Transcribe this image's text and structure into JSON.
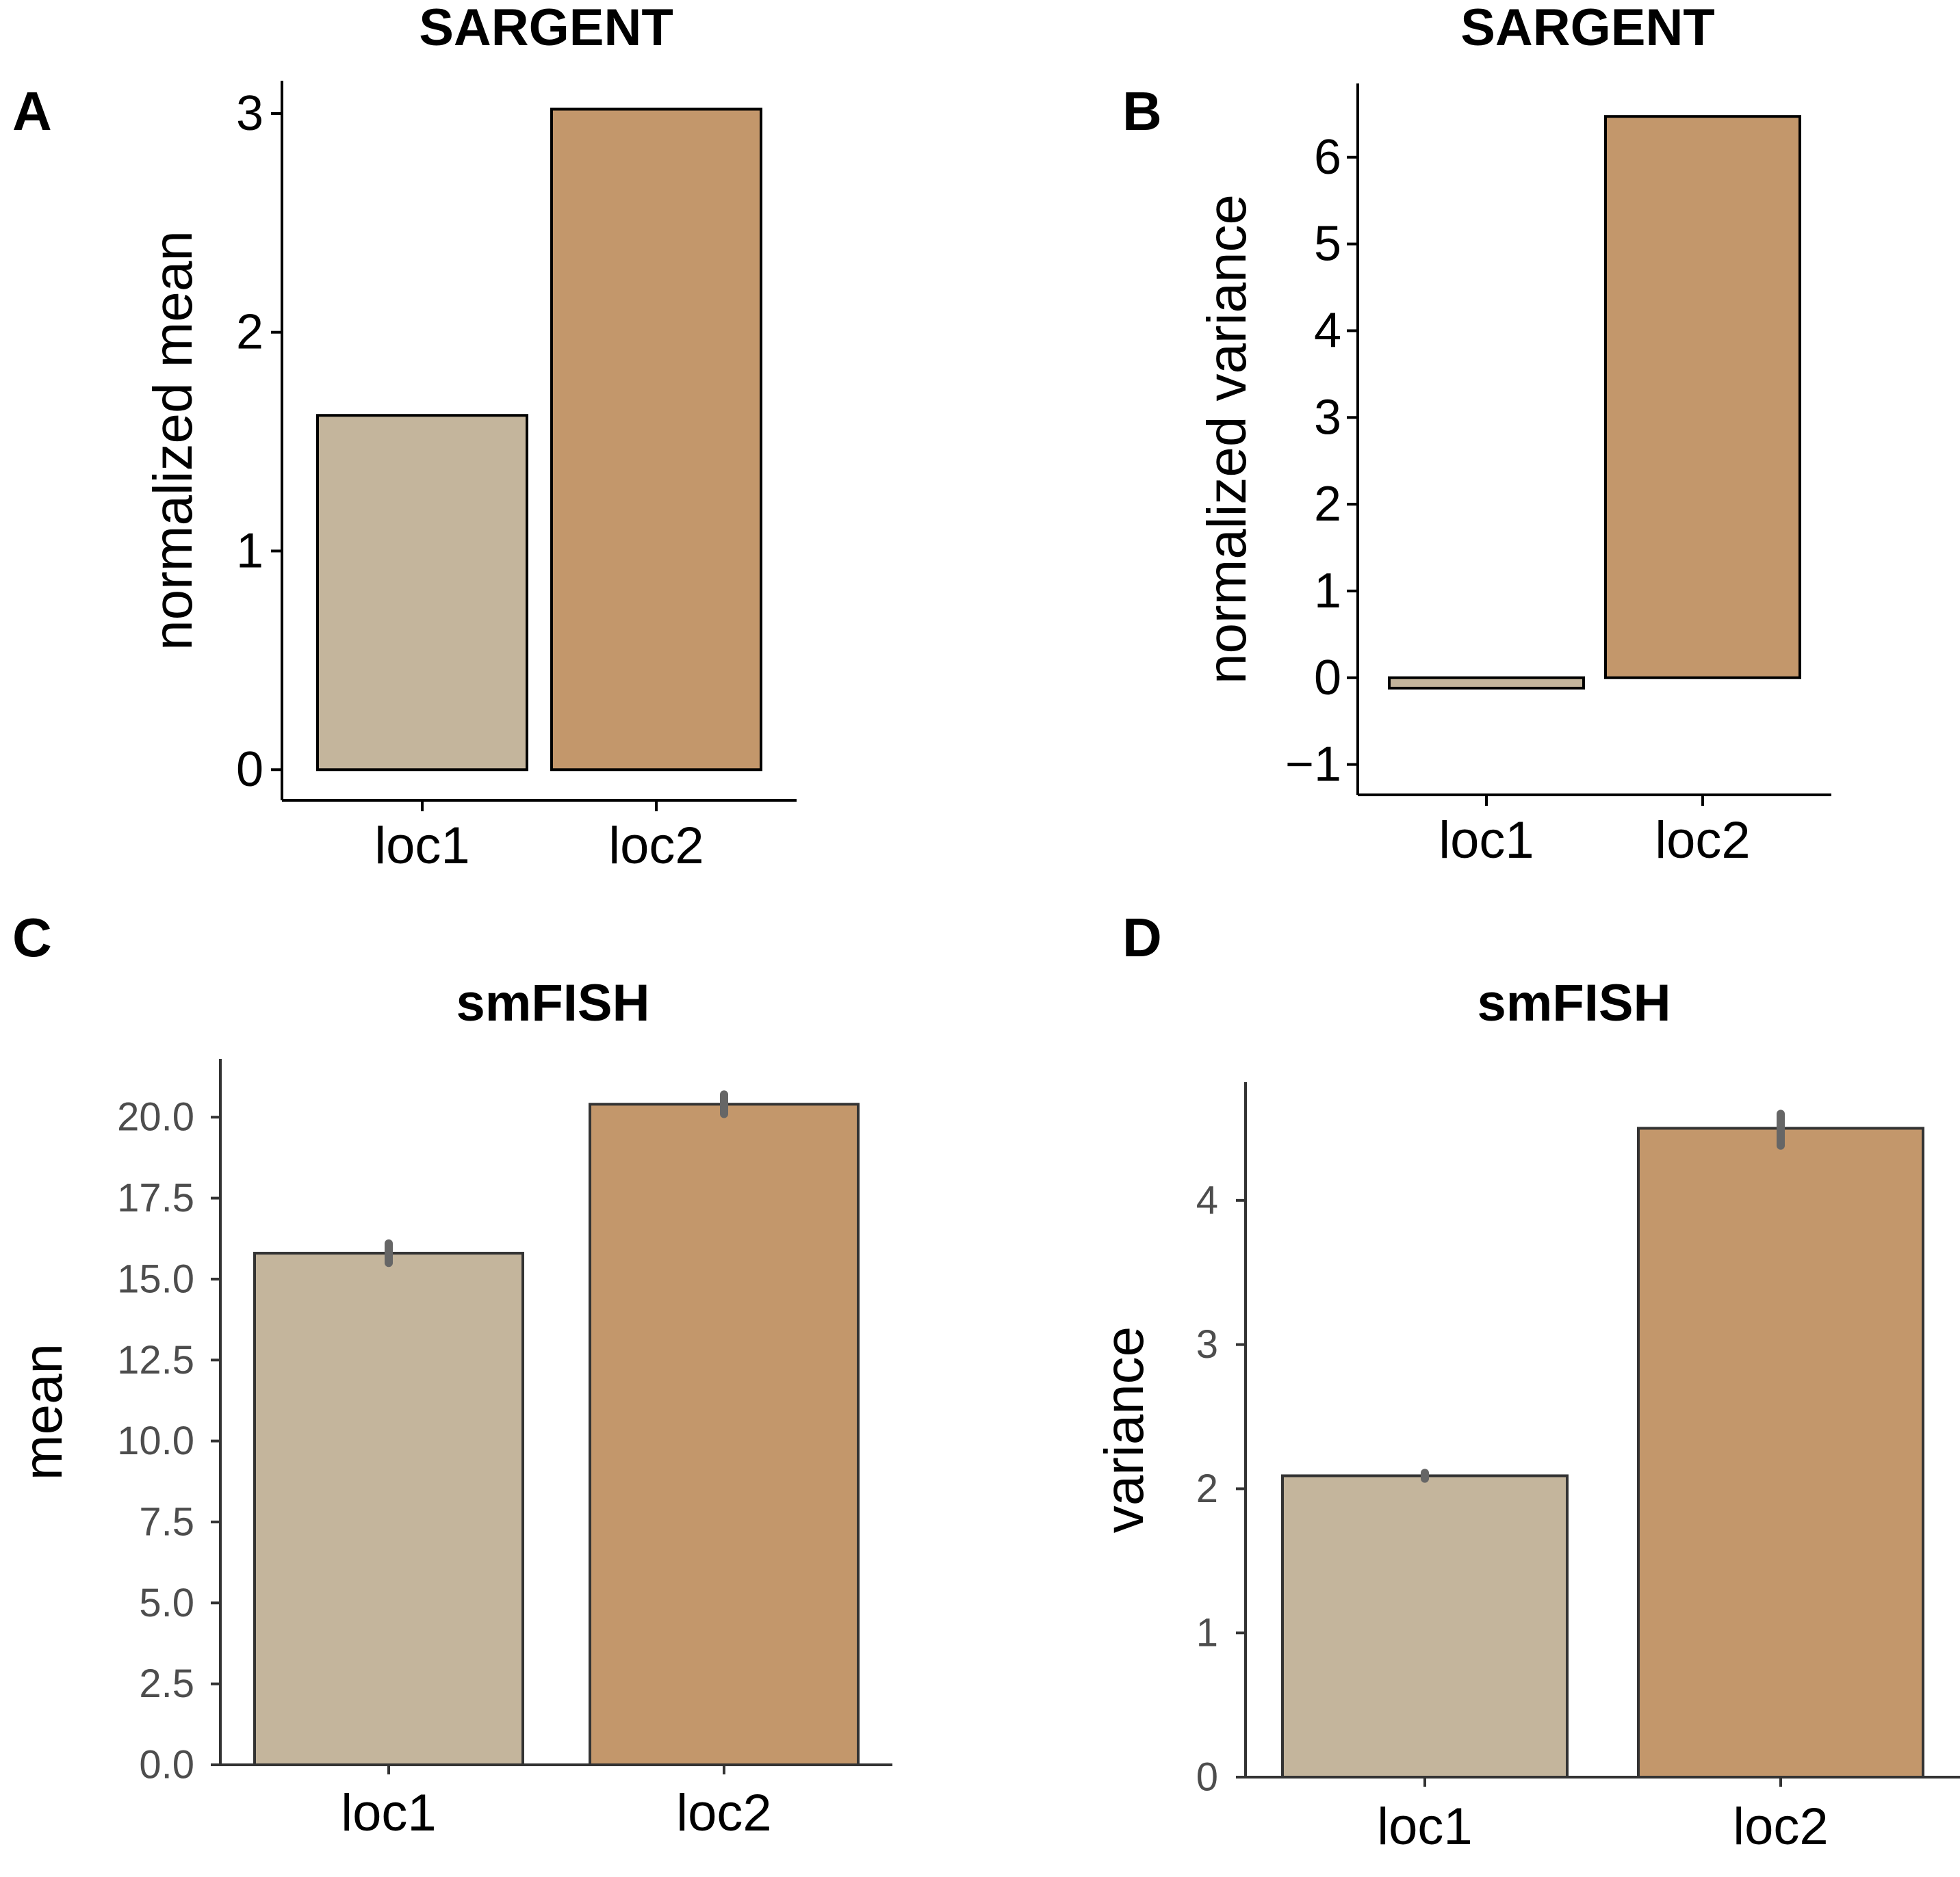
{
  "colors": {
    "loc1": "#c4b59c",
    "loc2": "#c3976b"
  },
  "chart_data": [
    {
      "panel": "A",
      "type": "bar",
      "title": "SARGENT",
      "ylabel": "normalized mean",
      "xlabel": "",
      "categories": [
        "loc1",
        "loc2"
      ],
      "values": [
        1.62,
        3.02
      ],
      "ylim": [
        -0.14,
        3.15
      ],
      "yticks": [
        "0",
        "1",
        "2",
        "3"
      ],
      "grid": false
    },
    {
      "panel": "B",
      "type": "bar",
      "title": "SARGENT",
      "ylabel": "normalized variance",
      "xlabel": "",
      "categories": [
        "loc1",
        "loc2"
      ],
      "values": [
        -0.12,
        6.47
      ],
      "ylim": [
        -1.35,
        6.85
      ],
      "yticks": [
        "−1",
        "0",
        "1",
        "2",
        "3",
        "4",
        "5",
        "6"
      ],
      "grid": false
    },
    {
      "panel": "C",
      "type": "bar",
      "title": "smFISH",
      "ylabel": "mean",
      "xlabel": "",
      "categories": [
        "loc1",
        "loc2"
      ],
      "values": [
        15.8,
        20.4
      ],
      "error_ranges": [
        [
          15.5,
          16.1
        ],
        [
          20.1,
          20.7
        ]
      ],
      "ylim": [
        0,
        21.8
      ],
      "yticks": [
        "0.0",
        "2.5",
        "5.0",
        "7.5",
        "10.0",
        "12.5",
        "15.0",
        "17.5",
        "20.0"
      ],
      "grid": false
    },
    {
      "panel": "D",
      "type": "bar",
      "title": "smFISH",
      "ylabel": "variance",
      "xlabel": "",
      "categories": [
        "loc1",
        "loc2"
      ],
      "values": [
        2.09,
        4.5
      ],
      "error_ranges": [
        [
          2.07,
          2.11
        ],
        [
          4.38,
          4.6
        ]
      ],
      "ylim": [
        0,
        4.82
      ],
      "yticks": [
        "0",
        "1",
        "2",
        "3",
        "4"
      ],
      "grid": false
    }
  ]
}
